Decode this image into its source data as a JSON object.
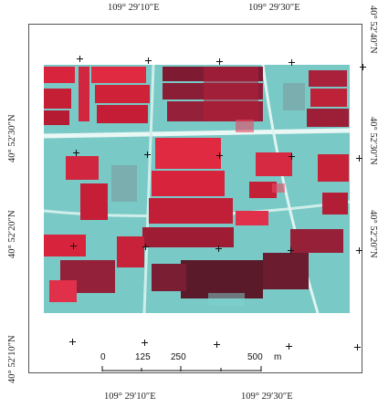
{
  "grid_labels": {
    "top": [
      "109° 29′10″E",
      "109° 29′30″E"
    ],
    "bottom": [
      "109° 29′10″E",
      "109° 29′30″E"
    ],
    "left": [
      "40° 52′30″N",
      "40° 52′20″N",
      "40° 52′10″N"
    ],
    "right": [
      "40° 52′40″N",
      "40° 52′30″N",
      "40° 52′20″N"
    ]
  },
  "scale_bar": {
    "ticks": [
      "0",
      "125",
      "250",
      "500"
    ],
    "unit": "m"
  },
  "colors": {
    "vegetation": "#d8243c",
    "bare_soil": "#7fd3cf",
    "dark_field": "#5a1a2a"
  }
}
